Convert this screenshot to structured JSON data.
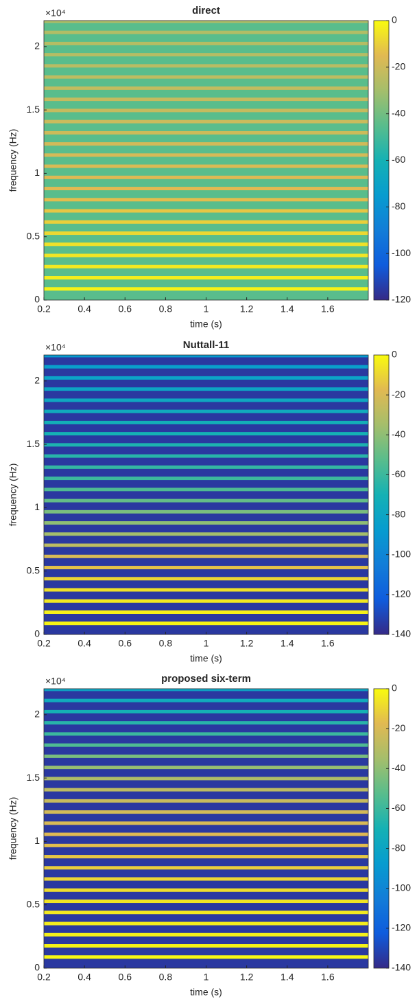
{
  "chart_data": [
    {
      "type": "spectrogram",
      "title": "direct",
      "xlabel": "time (s)",
      "ylabel": "frequency (Hz)",
      "y_multiplier": "×10⁴",
      "colormap": "parula",
      "xlim": [
        0.2,
        1.8
      ],
      "xticks": [
        0.2,
        0.4,
        0.6,
        0.8,
        1,
        1.2,
        1.4,
        1.6
      ],
      "ylim": [
        0,
        22050
      ],
      "yticks": [
        0,
        {
          "value": 5000,
          "label": "0.5"
        },
        {
          "value": 10000,
          "label": "1"
        },
        {
          "value": 15000,
          "label": "1.5"
        },
        {
          "value": 20000,
          "label": "2"
        }
      ],
      "clim": [
        -120,
        0
      ],
      "cticks": [
        0,
        -20,
        -40,
        -60,
        -80,
        -100,
        -120
      ],
      "background_db": -45,
      "harmonics_hz": [
        880,
        1760,
        2640,
        3520,
        4400,
        5280,
        6160,
        7040,
        7920,
        8800,
        9680,
        10560,
        11440,
        12320,
        13200,
        14080,
        14960,
        15840,
        16720,
        17600,
        18480,
        19360,
        20240,
        21120,
        22000
      ],
      "harmonic_levels_db": [
        -2,
        -3,
        -4,
        -5,
        -6,
        -8,
        -10,
        -12,
        -14,
        -15,
        -16,
        -17,
        -18,
        -19,
        -20,
        -21,
        -22,
        -22,
        -23,
        -24,
        -25,
        -26,
        -26,
        -27,
        -28
      ]
    },
    {
      "type": "spectrogram",
      "title": "Nuttall-11",
      "xlabel": "time (s)",
      "ylabel": "frequency (Hz)",
      "y_multiplier": "×10⁴",
      "colormap": "parula",
      "xlim": [
        0.2,
        1.8
      ],
      "xticks": [
        0.2,
        0.4,
        0.6,
        0.8,
        1,
        1.2,
        1.4,
        1.6
      ],
      "ylim": [
        0,
        22050
      ],
      "yticks": [
        0,
        {
          "value": 5000,
          "label": "0.5"
        },
        {
          "value": 10000,
          "label": "1"
        },
        {
          "value": 15000,
          "label": "1.5"
        },
        {
          "value": 20000,
          "label": "2"
        }
      ],
      "clim": [
        -140,
        0
      ],
      "cticks": [
        0,
        -20,
        -40,
        -60,
        -80,
        -100,
        -120,
        -140
      ],
      "background_db": -135,
      "harmonics_hz": [
        880,
        1760,
        2640,
        3520,
        4400,
        5280,
        6160,
        7040,
        7920,
        8800,
        9680,
        10560,
        11440,
        12320,
        13200,
        14080,
        14960,
        15840,
        16720,
        17600,
        18480,
        19360,
        20240,
        21120,
        22000
      ],
      "harmonic_levels_db": [
        -2,
        -3,
        -5,
        -7,
        -10,
        -15,
        -20,
        -28,
        -35,
        -40,
        -45,
        -50,
        -55,
        -60,
        -62,
        -65,
        -68,
        -70,
        -72,
        -75,
        -78,
        -80,
        -82,
        -85,
        -88
      ]
    },
    {
      "type": "spectrogram",
      "title": "proposed six-term",
      "xlabel": "time (s)",
      "ylabel": "frequency (Hz)",
      "y_multiplier": "×10⁴",
      "colormap": "parula",
      "xlim": [
        0.2,
        1.8
      ],
      "xticks": [
        0.2,
        0.4,
        0.6,
        0.8,
        1,
        1.2,
        1.4,
        1.6
      ],
      "ylim": [
        0,
        22050
      ],
      "yticks": [
        0,
        {
          "value": 5000,
          "label": "0.5"
        },
        {
          "value": 10000,
          "label": "1"
        },
        {
          "value": 15000,
          "label": "1.5"
        },
        {
          "value": 20000,
          "label": "2"
        }
      ],
      "clim": [
        -140,
        0
      ],
      "cticks": [
        0,
        -20,
        -40,
        -60,
        -80,
        -100,
        -120,
        -140
      ],
      "background_db": -135,
      "harmonics_hz": [
        880,
        1760,
        2640,
        3520,
        4400,
        5280,
        6160,
        7040,
        7920,
        8800,
        9680,
        10560,
        11440,
        12320,
        13200,
        14080,
        14960,
        15840,
        16720,
        17600,
        18480,
        19360,
        20240,
        21120,
        22000
      ],
      "harmonic_levels_db": [
        -1,
        -2,
        -3,
        -4,
        -5,
        -6,
        -8,
        -10,
        -12,
        -14,
        -16,
        -18,
        -20,
        -22,
        -25,
        -28,
        -32,
        -38,
        -45,
        -55,
        -60,
        -65,
        -70,
        -75,
        -80
      ]
    }
  ]
}
